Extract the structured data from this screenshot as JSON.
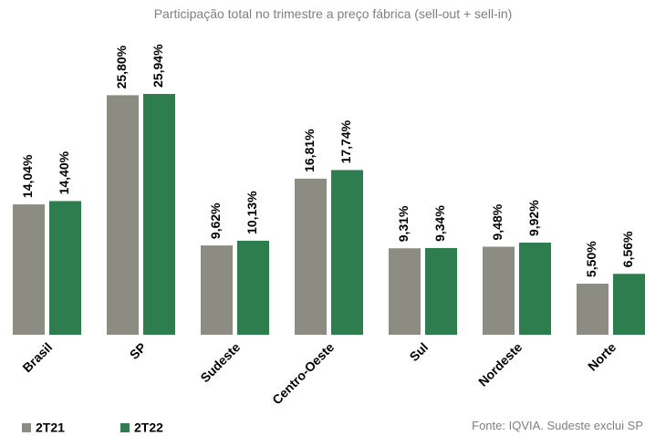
{
  "chart_data": {
    "type": "bar",
    "title": "Participação total no trimestre a preço fábrica (sell-out + sell-in)",
    "categories": [
      "Brasil",
      "SP",
      "Sudeste",
      "Centro-Oeste",
      "Sul",
      "Nordeste",
      "Norte"
    ],
    "series": [
      {
        "name": "2T21",
        "color": "#8c8c82",
        "values": [
          14.04,
          25.8,
          9.62,
          16.81,
          9.31,
          9.48,
          5.5
        ],
        "value_labels": [
          "14,04%",
          "25,80%",
          "9,62%",
          "16,81%",
          "9,31%",
          "9,48%",
          "5,50%"
        ]
      },
      {
        "name": "2T22",
        "color": "#2e7d4f",
        "values": [
          14.4,
          25.94,
          10.13,
          17.74,
          9.34,
          9.92,
          6.56
        ],
        "value_labels": [
          "14,40%",
          "25,94%",
          "10,13%",
          "17,74%",
          "9,34%",
          "9,92%",
          "6,56%"
        ]
      }
    ],
    "ylim": [
      0,
      28
    ],
    "note": "Fonte: IQVIA. Sudeste exclui SP"
  }
}
